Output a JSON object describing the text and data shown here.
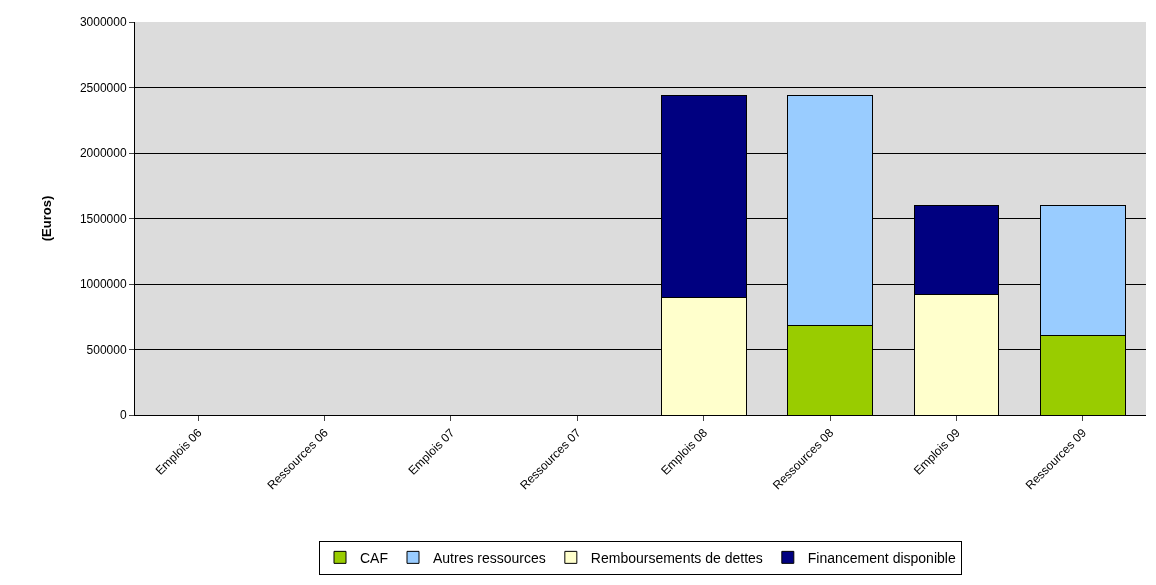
{
  "chart_data": {
    "type": "bar",
    "ylabel": "(Euros)",
    "stacked": true,
    "grid": "y",
    "legend": "bottom",
    "categories": [
      "Emplois 06",
      "Ressources 06",
      "Emplois 07",
      "Ressources 07",
      "Emplois 08",
      "Ressources 08",
      "Emplois 09",
      "Ressources 09"
    ],
    "series": [
      {
        "name": "CAF",
        "color": "#99cc00",
        "values": [
          null,
          null,
          null,
          null,
          null,
          680000,
          null,
          610000
        ]
      },
      {
        "name": "Autres ressources",
        "color": "#99ccff",
        "values": [
          null,
          null,
          null,
          null,
          null,
          1760000,
          null,
          990000
        ]
      },
      {
        "name": "Remboursements de dettes",
        "color": "#ffffcc",
        "values": [
          null,
          null,
          null,
          null,
          900000,
          null,
          920000,
          null
        ]
      },
      {
        "name": "Financement disponible",
        "color": "#000080",
        "values": [
          null,
          null,
          null,
          null,
          1540000,
          null,
          680000,
          null
        ]
      }
    ],
    "ylim": [
      0,
      3000000
    ],
    "yticks": [
      0,
      500000,
      1000000,
      1500000,
      2000000,
      2500000,
      3000000
    ]
  }
}
